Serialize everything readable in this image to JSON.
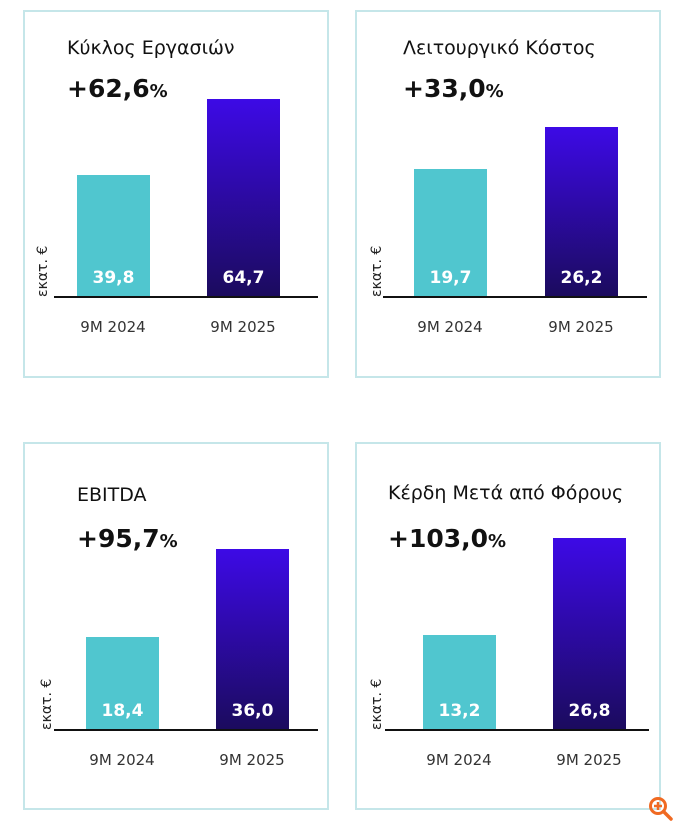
{
  "chart_data": [
    {
      "type": "bar",
      "title": "Κύκλος Εργασιών",
      "change": "+62,6",
      "change_unit": "%",
      "ylabel": "εκατ. €",
      "categories": [
        "9M 2024",
        "9M 2025"
      ],
      "values": [
        39.8,
        64.7
      ],
      "labels": [
        "39,8",
        "64,7"
      ],
      "colors": [
        "#50c6cf",
        "#3d0ae6"
      ]
    },
    {
      "type": "bar",
      "title": "Λειτουργικό Κόστος",
      "change": "+33,0",
      "change_unit": "%",
      "ylabel": "εκατ. €",
      "categories": [
        "9M 2024",
        "9M 2025"
      ],
      "values": [
        19.7,
        26.2
      ],
      "labels": [
        "19,7",
        "26,2"
      ],
      "colors": [
        "#50c6cf",
        "#3d0ae6"
      ]
    },
    {
      "type": "bar",
      "title": "EBITDA",
      "change": "+95,7",
      "change_unit": "%",
      "ylabel": "εκατ. €",
      "categories": [
        "9M 2024",
        "9M 2025"
      ],
      "values": [
        18.4,
        36.0
      ],
      "labels": [
        "18,4",
        "36,0"
      ],
      "colors": [
        "#50c6cf",
        "#3d0ae6"
      ]
    },
    {
      "type": "bar",
      "title": "Κέρδη Μετά από Φόρους",
      "change": "+103,0",
      "change_unit": "%",
      "ylabel": "εκατ. €",
      "categories": [
        "9M 2024",
        "9M 2025"
      ],
      "values": [
        13.2,
        26.8
      ],
      "labels": [
        "13,2",
        "26,8"
      ],
      "colors": [
        "#50c6cf",
        "#3d0ae6"
      ]
    }
  ],
  "zoom_icon": "zoom-in-icon",
  "accent": "#f06a22"
}
